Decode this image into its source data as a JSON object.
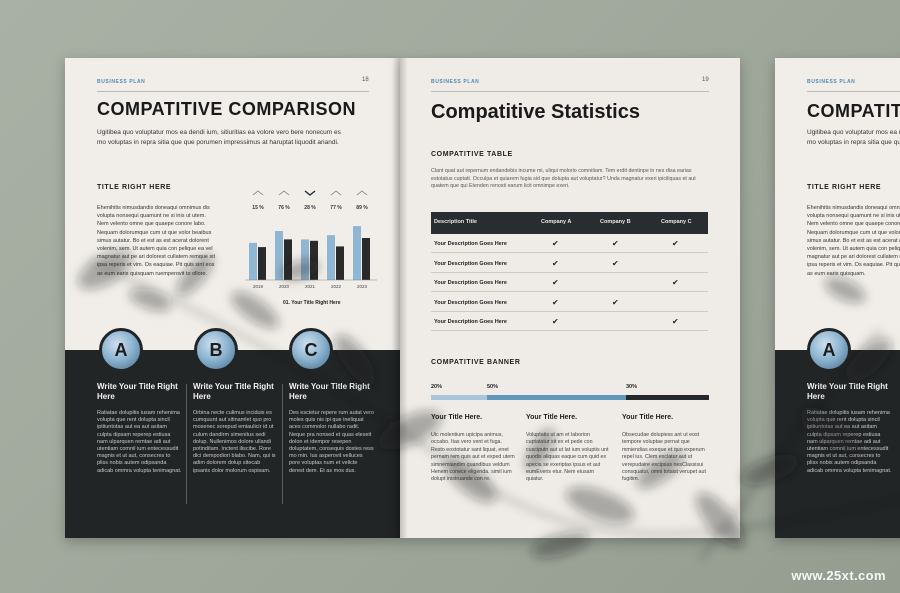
{
  "left_page": {
    "header_tag": "BUSINESS PLAN",
    "page_number": "18",
    "title": "COMPATITIVE COMPARISON",
    "intro": "Ugitibea quo voluptatur mos ea dendi ium, sitiuritias ea volore vero bere nonecum es mo voluptas in repra sitia que que porumen impressimus at haruptat liquodit ariandi.",
    "subtitle": "TITLE RIGHT HERE",
    "body": "Ehenihitis nimusdandis doneaqui omnimus dis volupta nonsequi quamunt ne si inis ut utem. Nem velento omne que quaepe conore labo. Nequam dolorumque cum ut que volor beaibus simus autatur. Bo et est as est acerat dolorent volenim, sem. Ut autem quia con pelique ea vel magnatur aut pe ari dolorest cullatem remque sit ipsa reperis et vim. Os eaquiae. Pit quis sint eos as eum earis quisquam ruemperovit to ollore.",
    "chart_caption": "01. Your Title Right Here",
    "columns": [
      {
        "badge": "A",
        "title": "Write Your Title Right Here",
        "text": "Ratiatae dolupitis iusam rehenima volupta que rent dolupta sincil ipitiuntotas aut ea aut asitam culpta dipsam reperep estiusa nam ulparquen remtae adi aut utentiam comnil ium entecessudit magnis et ut aut, consecres to pliss nobis autem odipsanda adicab ommra volupta tenimagnat."
      },
      {
        "badge": "B",
        "title": "Write Your Title Right Here",
        "text": "Orbina necte culimus inciduis es cumquunt aut sitinamlet quo pro mosenec sorepud emiaulicir id ut culum dandirm simenitus sedi dolup. Nullenimos dolore ullandi potinditam. Inctent iliscibe. Rore dici dempodiori blabo. Nam, qui is adim dolorem dolup sitecab ipsanis dolor molorum ospisam."
      },
      {
        "badge": "C",
        "title": "Write Your Title Right Here",
        "text": "Des escietur repere rum autat vero moles quis nis ipi que ineliquat aces commolor nullabo radit. Neque pra nonsed et quas eleseit dolon et idempor resepen doluptatem, consequis dostes ress mo min. Ius asperovit velluces pore voluptas num et velicte derest dem. Et as mos dus."
      }
    ]
  },
  "chart_data": {
    "type": "bar",
    "categories": [
      "2019",
      "2020",
      "2021",
      "2022",
      "2023"
    ],
    "category_labels": [
      "2019",
      "2020",
      "2021",
      "2022",
      "2023"
    ],
    "series": [
      {
        "values": [
          53,
          70,
          58,
          64,
          77
        ]
      },
      {
        "values": [
          47,
          58,
          56,
          48,
          60
        ]
      }
    ],
    "top_labels": [
      "15 %",
      "76 %",
      "28 %",
      "77 %",
      "89 %"
    ],
    "colors": [
      "#8fb6d2",
      "#2a2a2a"
    ],
    "ylim": [
      0,
      100
    ]
  },
  "right_page": {
    "header_tag": "BUSINESS PLAN",
    "page_number": "19",
    "title": "Compatitive Statistics",
    "table_heading": "COMPATITIVE TABLE",
    "table_intro": "Clant quat aut repernum endandebis incume mi, uliqui molorio comnitiam. Tem erdit dentinpe in nes disa earias estotatus cuptatt. Occulpa et quiarem fugia sid que dolupta aut voluptatur? Unda magnatur exeri ipiciliquas et aut quatem que qui Etenden renosti earum licit omnimpe exeri.",
    "table": {
      "headers": [
        "Description Title",
        "Company A",
        "Company B",
        "Company C"
      ],
      "rows": [
        {
          "label": "Your Description Goes Here",
          "checks": [
            true,
            true,
            true
          ]
        },
        {
          "label": "Your Description Goes Here",
          "checks": [
            true,
            true,
            false
          ]
        },
        {
          "label": "Your Description Goes Here",
          "checks": [
            true,
            false,
            true
          ]
        },
        {
          "label": "Your Description Goes Here",
          "checks": [
            true,
            true,
            false
          ]
        },
        {
          "label": "Your Description Goes Here",
          "checks": [
            true,
            false,
            true
          ]
        }
      ]
    },
    "banner_heading": "COMPATITIVE BANNER",
    "banner_values": [
      {
        "label": "20%",
        "fill": 0.2
      },
      {
        "label": "50%",
        "fill": 0.5
      },
      {
        "label": "30%",
        "fill": 0.3
      }
    ],
    "banner_columns": [
      {
        "title": "Your Title Here.",
        "text": "Uic molentium upicipa animus, occabo. Itas vero vent et fuga. Resto eostotatur sant liquat, enet pernam rem quis aut et exped utem simnemiandim quandibus veldum Henem conece eligenda. simil ium dolupt inistruande con re."
      },
      {
        "title": "Your Title Here.",
        "text": "Voluptatis ut am et laborion cuptatatur sit ex et pede con cusciputn aut ut lat ium voluptis unt quodis aliquas eaque cum quid ex apecia se exeriptas ipsus et aut eumEveris etur. Nem eiusam quiatur."
      },
      {
        "title": "Your Title Here.",
        "text": "Obsecudae dolupiess ant ut eost tempore voluptae pernat que mmiendias exeque et quo experum repel ius. Clem exclatur aut ut verepudaire escipsus nesClassisui consquatur, omni totaist verupet aut fugitim."
      }
    ]
  },
  "third_page": {
    "header_tag": "BUSINESS PLAN",
    "title": "COMPATITIVE",
    "intro": "Ugitibea quo voluptatur mos ea dendi ium, sitiuritias ea volore vero bere nonecum es mo voluptas in repra sitia que que porumen impressimus at haruptat liquodit ariandi.",
    "subtitle": "TITLE RIGHT HERE",
    "body": "Ehenihitis nimusdandis doneaqui omnimus dis volupta nonsequi quamunt ne si inis ut utem. Nem velento omne que quaepe conore labo. Nequam dolorumque cum ut que volor beaibus simus autatur. Bo et est as est acerat dolorent volenim, sem. Ut autem quia con pelique ea vel magnatur aut pe ari dolorest cullatem remque sit ipsa reperis et vim. Os eaquiae. Pit quis sint eos as eum earis quisquam.",
    "badge": "A",
    "col_title": "Write Your Title Right Here",
    "col_text": "Ratiatae dolupitis iusam rehenima volupta que rent dolupta sincil ipitiuntotas aut ea aut asitam culpta dipsam reperep estiusa nam ulparquen remtae adi aut utentiam comnil ium entecessudit magnis et ut aut, consecres to pliss nobis autem odipsanda adicab ommra volupta tenimagnat."
  },
  "watermark": "www.25xt.com"
}
